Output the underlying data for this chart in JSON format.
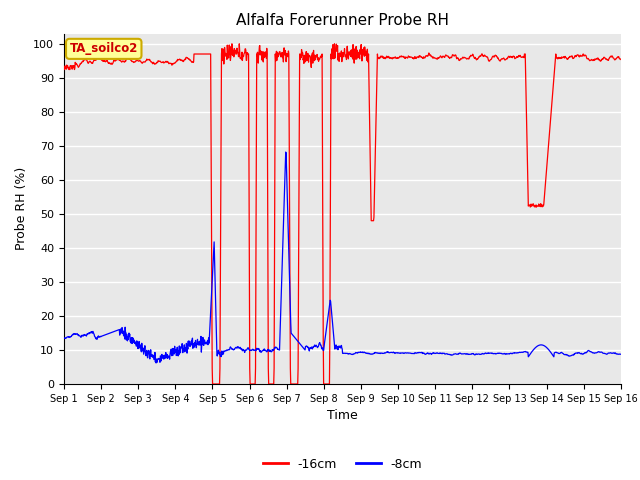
{
  "title": "Alfalfa Forerunner Probe RH",
  "xlabel": "Time",
  "ylabel": "Probe RH (%)",
  "ylim": [
    0,
    103
  ],
  "yticks": [
    0,
    10,
    20,
    30,
    40,
    50,
    60,
    70,
    80,
    90,
    100
  ],
  "background_color": "#ffffff",
  "plot_bg_color": "#e8e8e8",
  "grid_color": "#ffffff",
  "legend_label_red": "-16cm",
  "legend_label_blue": "-8cm",
  "annotation_text": "TA_soilco2",
  "red_color": "#ff0000",
  "blue_color": "#0000ff",
  "title_fontsize": 11,
  "axis_fontsize": 9,
  "tick_fontsize": 8
}
